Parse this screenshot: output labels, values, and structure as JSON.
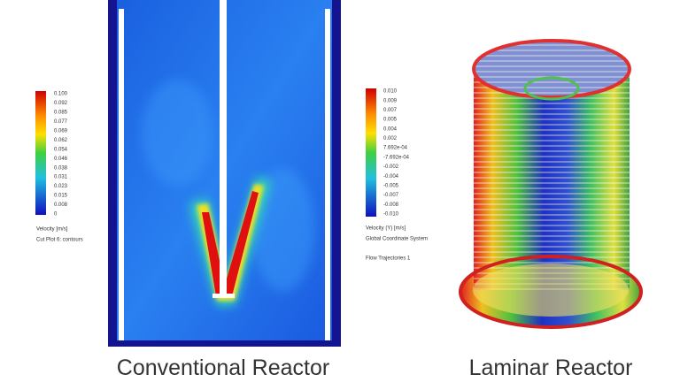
{
  "left_panel": {
    "colorbar_labels": [
      "0.100",
      "0.092",
      "0.085",
      "0.077",
      "0.069",
      "0.062",
      "0.054",
      "0.046",
      "0.038",
      "0.031",
      "0.023",
      "0.015",
      "0.008",
      "0"
    ],
    "legend_lines": [
      "Velocity [m/s]",
      "Cut Plot 6: contours"
    ],
    "caption": "Conventional Reactor"
  },
  "right_panel": {
    "colorbar_labels": [
      "0.010",
      "0.009",
      "0.007",
      "0.005",
      "0.004",
      "0.002",
      "7.692e-04",
      "-7.692e-04",
      "-0.002",
      "-0.004",
      "-0.005",
      "-0.007",
      "-0.008",
      "-0.010"
    ],
    "legend_lines": [
      "Velocity (Y) [m/s]",
      "Global Coordinate System",
      "Flow Trajectories 1"
    ],
    "caption": "Laminar Reactor"
  }
}
